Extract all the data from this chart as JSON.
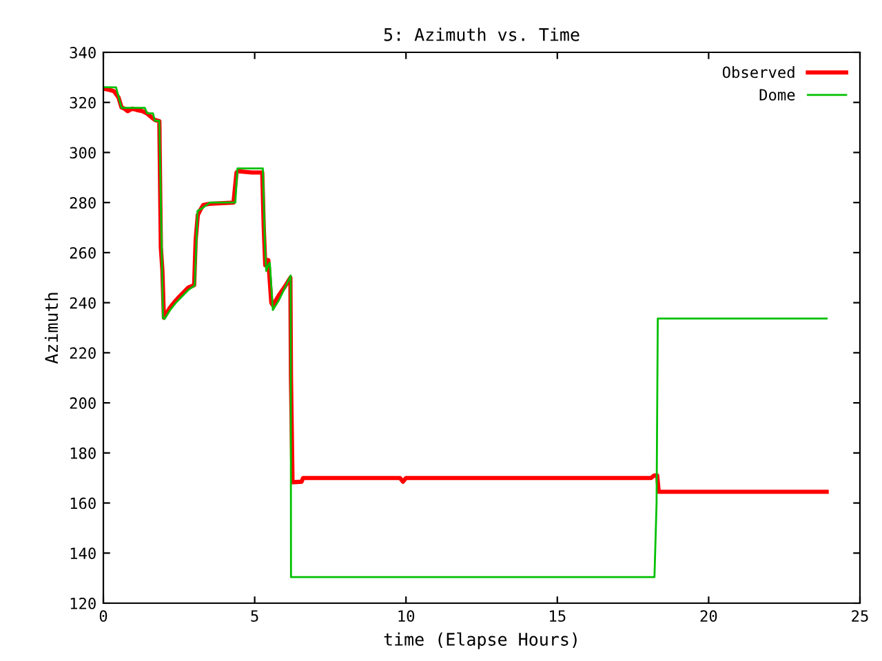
{
  "chart_data": {
    "type": "line",
    "title": "5: Azimuth vs. Time",
    "xlabel": "time (Elapse Hours)",
    "ylabel": "Azimuth",
    "xlim": [
      0,
      25
    ],
    "ylim": [
      120,
      340
    ],
    "xticks": [
      0,
      5,
      10,
      15,
      20,
      25
    ],
    "yticks": [
      120,
      140,
      160,
      180,
      200,
      220,
      240,
      260,
      280,
      300,
      320,
      340
    ],
    "grid": false,
    "legend": "top right",
    "line_style": "solid",
    "marker": "none",
    "series": [
      {
        "name": "Observed",
        "color": "#ff0000",
        "x": [
          0,
          0.2,
          0.35,
          0.5,
          0.6,
          0.7,
          0.8,
          0.95,
          1.1,
          1.3,
          1.45,
          1.6,
          1.7,
          1.85,
          1.9,
          1.95,
          2.0,
          2.05,
          2.2,
          2.4,
          2.6,
          2.8,
          3.0,
          3.05,
          3.12,
          3.2,
          3.3,
          3.5,
          4.3,
          4.4,
          4.45,
          4.9,
          5.25,
          5.3,
          5.35,
          5.45,
          5.55,
          5.6,
          5.8,
          6.0,
          6.18,
          6.2,
          6.25,
          6.55,
          6.6,
          9.8,
          9.9,
          10.0,
          18.1,
          18.2,
          18.3,
          18.35,
          23.9
        ],
        "values": [
          325.5,
          325,
          324.5,
          322,
          318,
          317.5,
          316.5,
          317.5,
          317,
          316.5,
          315.5,
          314,
          313,
          312.5,
          262,
          253,
          234,
          235,
          238,
          241,
          243.5,
          246,
          247,
          265,
          275,
          277,
          279,
          279.5,
          280,
          292,
          292.5,
          292,
          292,
          270,
          255,
          257,
          240,
          239,
          243,
          246.5,
          250,
          210,
          168.3,
          168.5,
          170,
          170,
          168.5,
          170,
          170,
          171,
          171,
          164.5,
          164.5
        ]
      },
      {
        "name": "Dome",
        "color": "#00c000",
        "x": [
          0,
          0.42,
          0.6,
          1.37,
          1.45,
          1.64,
          1.7,
          1.85,
          1.97,
          2.02,
          2.2,
          2.4,
          2.6,
          2.8,
          3.02,
          3.11,
          3.3,
          3.52,
          4.36,
          4.43,
          5.27,
          5.34,
          5.38,
          5.45,
          5.5,
          5.6,
          5.8,
          6.0,
          6.19,
          6.2,
          18.21,
          18.28,
          18.32,
          23.9
        ],
        "values": [
          326.1,
          326,
          317.8,
          317.8,
          315.6,
          315.6,
          312.7,
          312.7,
          234,
          233.5,
          237,
          240,
          242.5,
          245,
          246.9,
          276.6,
          278,
          280,
          280,
          293.6,
          293.6,
          262.8,
          252.7,
          255,
          256,
          237.1,
          241,
          246,
          250.9,
          130.4,
          130.4,
          160,
          233.7,
          233.7
        ]
      }
    ]
  }
}
